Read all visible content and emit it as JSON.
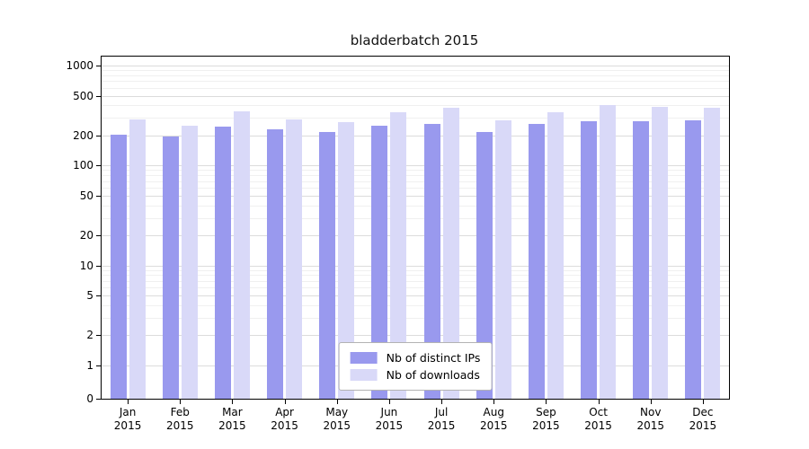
{
  "chart_data": {
    "type": "bar",
    "title": "bladderbatch 2015",
    "categories": [
      "Jan 2015",
      "Feb 2015",
      "Mar 2015",
      "Apr 2015",
      "May 2015",
      "Jun 2015",
      "Jul 2015",
      "Aug 2015",
      "Sep 2015",
      "Oct 2015",
      "Nov 2015",
      "Dec 2015"
    ],
    "series": [
      {
        "name": "Nb of distinct IPs",
        "color": "#9999ee",
        "values": [
          203,
          195,
          246,
          230,
          218,
          248,
          262,
          218,
          260,
          278,
          280,
          285
        ]
      },
      {
        "name": "Nb of downloads",
        "color": "#d9d9f8",
        "values": [
          290,
          250,
          350,
          288,
          272,
          345,
          380,
          285,
          342,
          402,
          383,
          378
        ]
      }
    ],
    "xlabel": "",
    "ylabel": "",
    "yscale": "symlog",
    "yticks": [
      0,
      1,
      2,
      5,
      10,
      20,
      50,
      100,
      200,
      500,
      1000
    ],
    "ylim": [
      0,
      1230
    ],
    "grid": true,
    "legend_position": "lower center"
  }
}
